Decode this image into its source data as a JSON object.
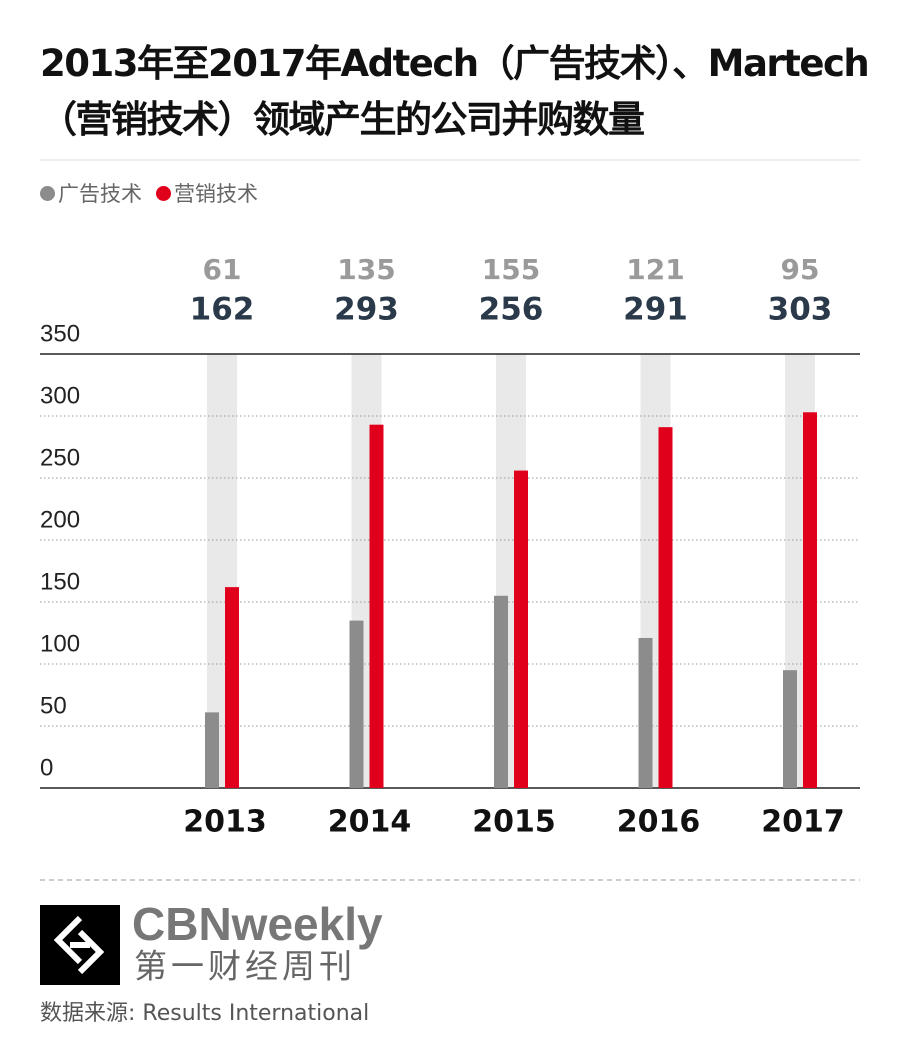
{
  "chart_data": {
    "type": "bar",
    "title": "2013年至2017年Adtech（广告技术）、Martech（营销技术）领域产生的公司并购数量",
    "categories": [
      "2013",
      "2014",
      "2015",
      "2016",
      "2017"
    ],
    "series": [
      {
        "name": "广告技术",
        "color": "#8c8c8c",
        "values": [
          61,
          135,
          155,
          121,
          95
        ]
      },
      {
        "name": "营销技术",
        "color": "#e0001b",
        "values": [
          162,
          293,
          256,
          291,
          303
        ]
      }
    ],
    "ylim": [
      0,
      350
    ],
    "yticks": [
      0,
      50,
      100,
      150,
      200,
      250,
      300,
      350
    ],
    "grid": true,
    "legend": "top-left"
  },
  "footer": {
    "brand": "CBNweekly",
    "brand_cn": "第一财经周刊",
    "source": "数据来源: Results International"
  }
}
